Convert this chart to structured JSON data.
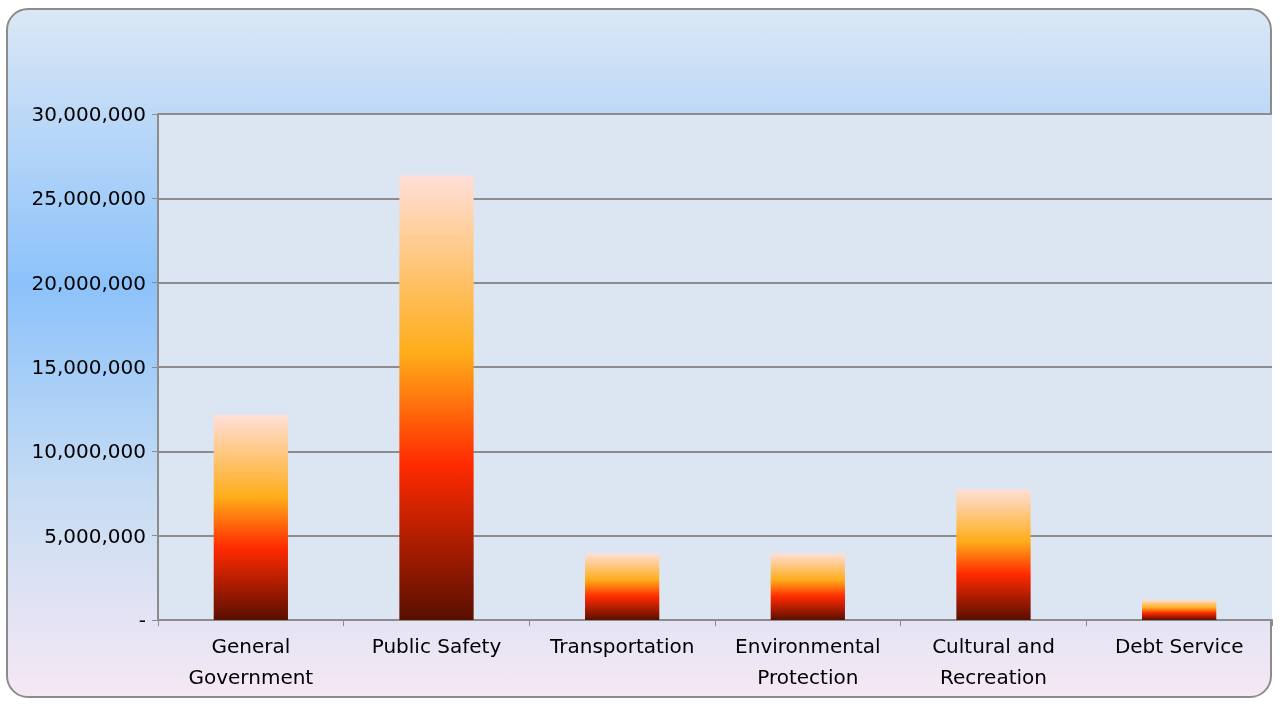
{
  "chart_data": {
    "type": "bar",
    "categories": [
      "General\nGovernment",
      "Public Safety",
      "Transportation",
      "Environmental\nProtection",
      "Cultural and\nRecreation",
      "Debt Service"
    ],
    "values": [
      12150000,
      26350000,
      3950000,
      3950000,
      7750000,
      1200000
    ],
    "color": "#ff2a00",
    "ylim": [
      0,
      30000000
    ],
    "yticks": [
      {
        "value": 0,
        "label": "-"
      },
      {
        "value": 5000000,
        "label": "5,000,000"
      },
      {
        "value": 10000000,
        "label": "10,000,000"
      },
      {
        "value": 15000000,
        "label": "15,000,000"
      },
      {
        "value": 20000000,
        "label": "20,000,000"
      },
      {
        "value": 25000000,
        "label": "25,000,000"
      },
      {
        "value": 30000000,
        "label": "30,000,000"
      }
    ],
    "grid": "y"
  }
}
